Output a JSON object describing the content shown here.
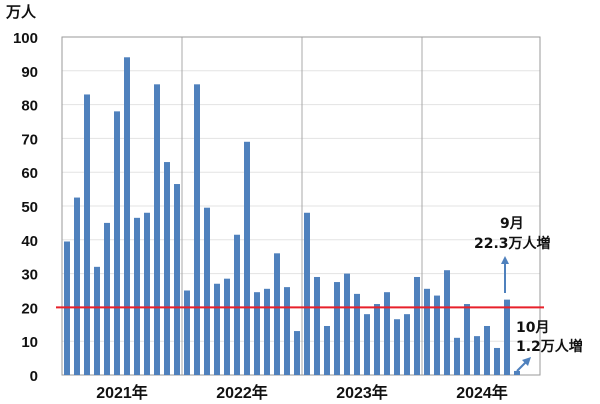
{
  "chart_data": {
    "type": "bar",
    "unit_label": "万人",
    "y_ticks": [
      "100",
      "90",
      "80",
      "70",
      "60",
      "50",
      "40",
      "30",
      "20",
      "10",
      "0"
    ],
    "ylim": [
      0,
      100
    ],
    "year_labels": [
      "2021年",
      "2022年",
      "2023年",
      "2024年"
    ],
    "months_per_year": 12,
    "values": [
      39.5,
      52.5,
      83,
      32,
      45,
      78,
      94,
      46.5,
      48,
      86,
      63,
      56.5,
      25,
      86,
      49.5,
      27,
      28.5,
      41.5,
      69,
      24.5,
      25.5,
      36,
      26,
      13,
      48,
      29,
      14.5,
      27.5,
      30,
      24,
      18,
      21,
      24.5,
      16.5,
      18,
      29,
      25.5,
      23.5,
      31,
      11,
      21,
      11.5,
      14.5,
      8,
      22.3,
      1.2
    ],
    "reference_line": 20,
    "bar_color": "#4F81BD",
    "line_color": "#E8202A",
    "annotations": {
      "sep": {
        "month": "9月",
        "text": "22.3万人増"
      },
      "oct": {
        "month": "10月",
        "text": "1.2万人増"
      }
    }
  }
}
